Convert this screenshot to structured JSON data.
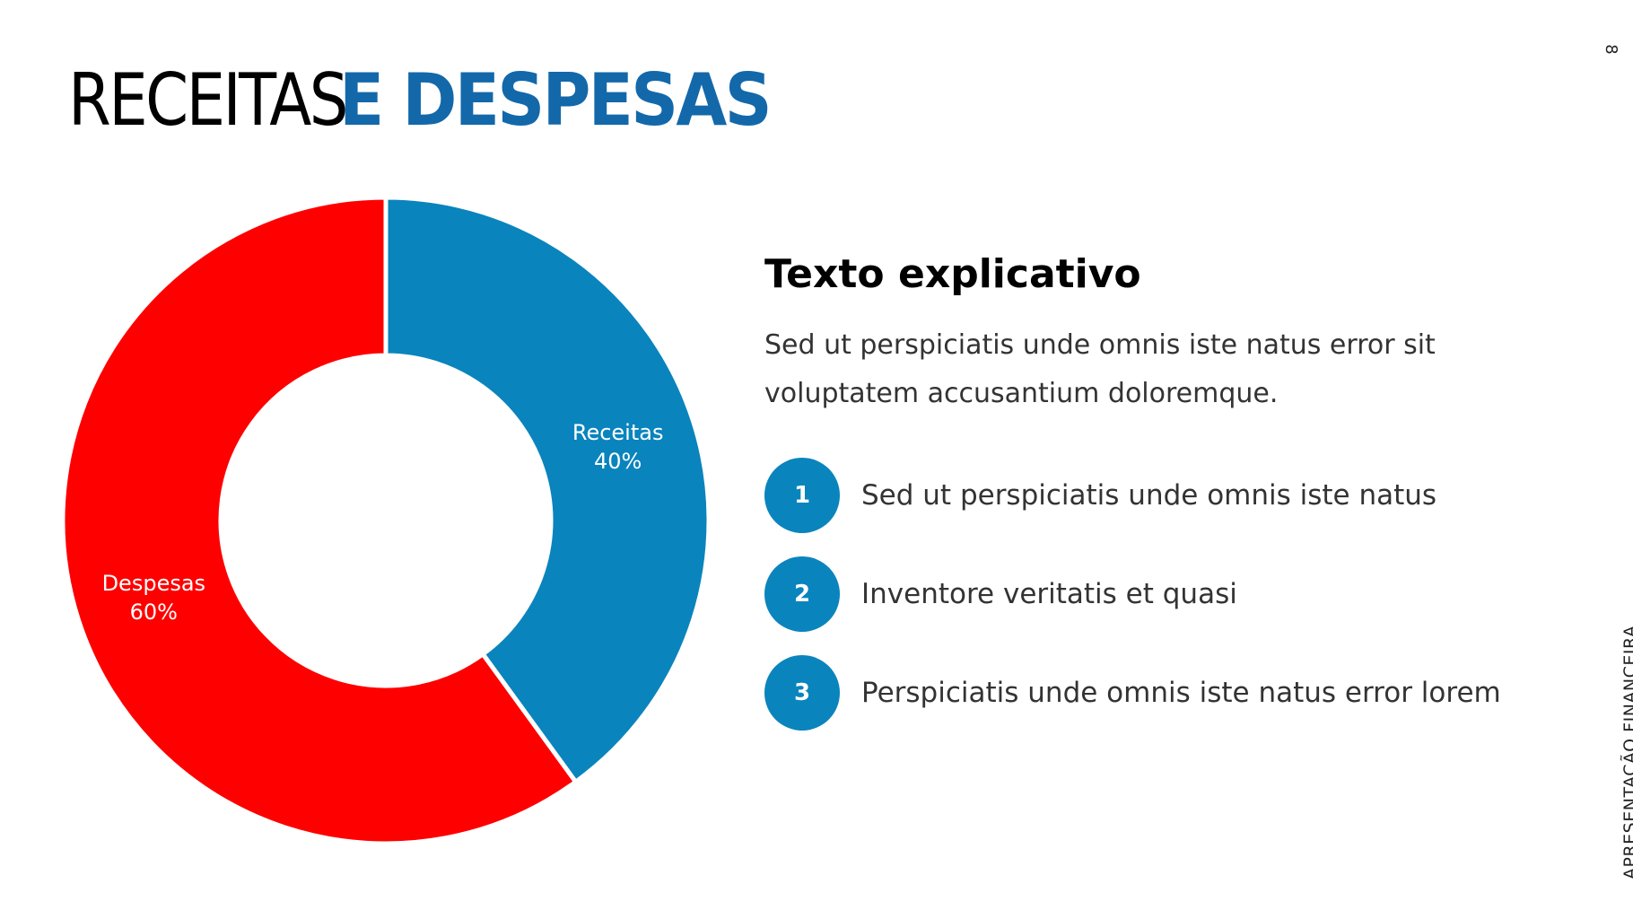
{
  "slide": {
    "title_light": "RECEITAS ",
    "title_bold": "E DESPESAS",
    "page_number": "8",
    "side_label": "APRESENTAÇÃO FINANCEIRA"
  },
  "panel": {
    "heading": "Texto explicativo",
    "body": "Sed ut perspiciatis unde omnis iste natus error sit voluptatem accusantium doloremque.",
    "items": [
      {
        "number": "1",
        "text": "Sed ut perspiciatis unde omnis iste natus"
      },
      {
        "number": "2",
        "text": "Inventore veritatis et quasi"
      },
      {
        "number": "3",
        "text": "Perspiciatis unde omnis iste natus error lorem"
      }
    ]
  },
  "chart_data": {
    "type": "pie",
    "donut": true,
    "categories": [
      "Receitas",
      "Despesas"
    ],
    "values": [
      40,
      60
    ],
    "labels": [
      "40%",
      "60%"
    ],
    "colors": [
      "#0a84bd",
      "#ff0000"
    ]
  }
}
